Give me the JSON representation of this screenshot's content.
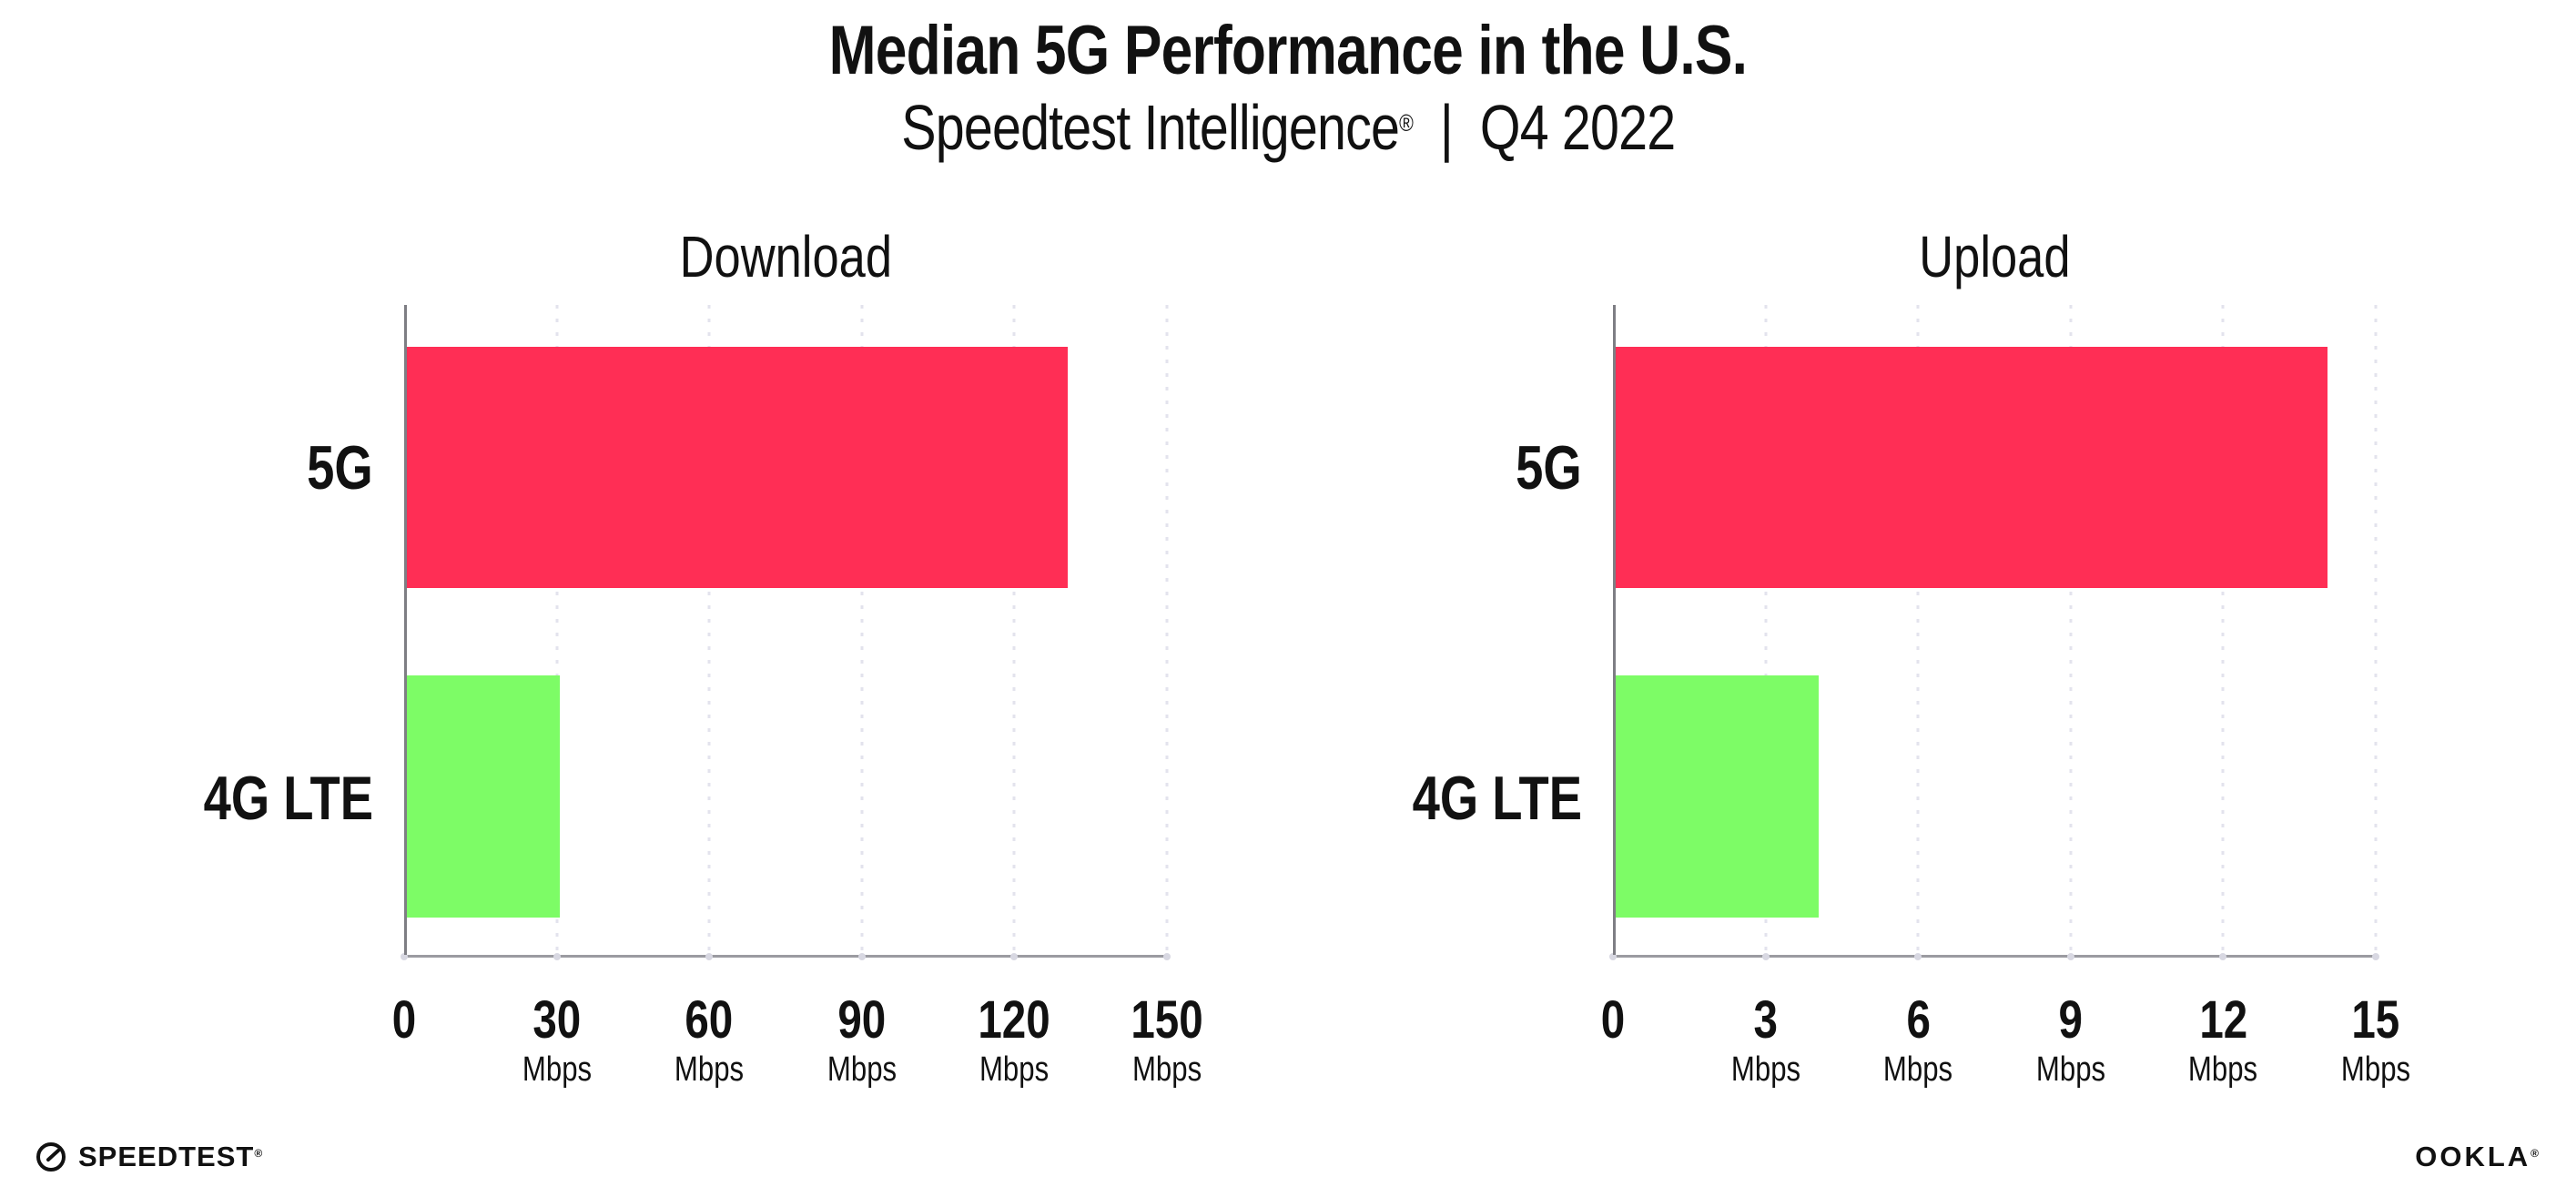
{
  "header": {
    "title": "Median 5G Performance in the U.S.",
    "subtitle": {
      "brand": "Speedtest Intelligence",
      "registered": "®",
      "separator": "|",
      "period": "Q4 2022"
    }
  },
  "chart_data": [
    {
      "type": "bar",
      "orientation": "horizontal",
      "title": "Download",
      "categories": [
        "5G",
        "4G LTE"
      ],
      "values": [
        130,
        30
      ],
      "unit": "Mbps",
      "xticks": [
        0,
        30,
        60,
        90,
        120,
        150
      ],
      "xlim": [
        0,
        150
      ],
      "bar_colors": [
        "#FF2E55",
        "#7DFC66"
      ],
      "grid": "dotted-vertical",
      "legend": "none"
    },
    {
      "type": "bar",
      "orientation": "horizontal",
      "title": "Upload",
      "categories": [
        "5G",
        "4G LTE"
      ],
      "values": [
        14,
        4
      ],
      "unit": "Mbps",
      "xticks": [
        0,
        3,
        6,
        9,
        12,
        15
      ],
      "xlim": [
        0,
        15
      ],
      "bar_colors": [
        "#FF2E55",
        "#7DFC66"
      ],
      "grid": "dotted-vertical",
      "legend": "none"
    }
  ],
  "footer": {
    "speedtest_label": "SPEEDTEST",
    "speedtest_mark": "®",
    "ookla_label": "OOKLA",
    "ookla_mark": "®"
  },
  "colors": {
    "bar_5g": "#FF2E55",
    "bar_4g_lte": "#7DFC66",
    "gridline": "#E3E3ED",
    "axis": "#8A8A90",
    "text": "#111111",
    "background": "#FFFFFF"
  }
}
